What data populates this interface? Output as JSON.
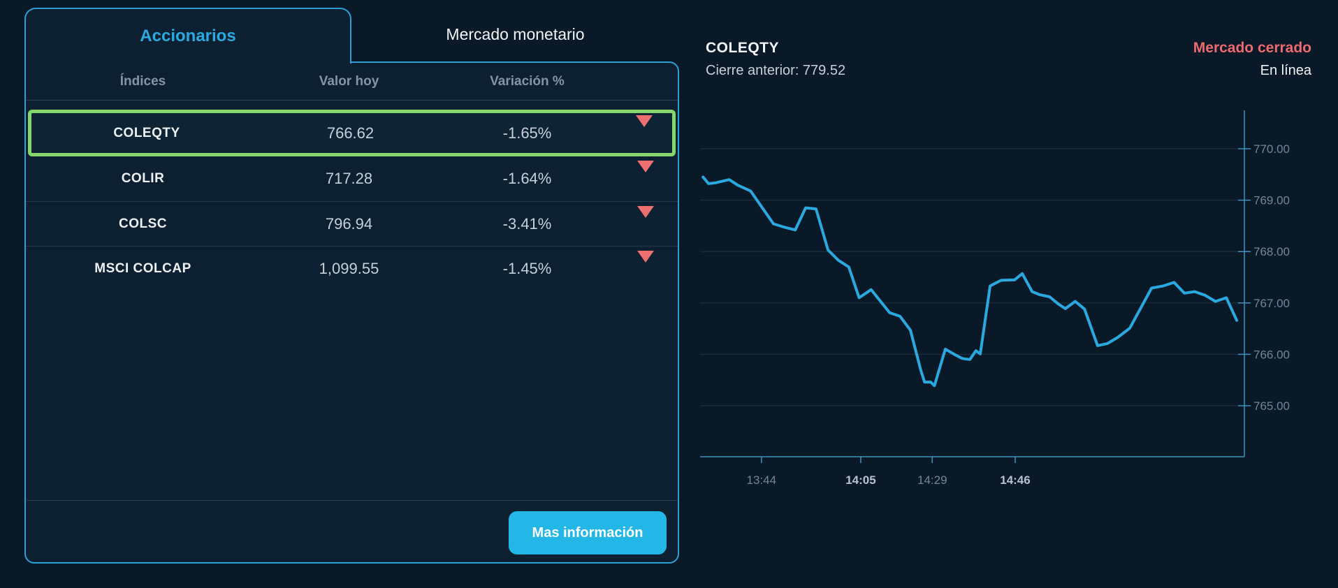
{
  "left_panel": {
    "tabs": [
      {
        "label": "Accionarios",
        "active": true
      },
      {
        "label": "Mercado monetario",
        "active": false
      }
    ],
    "table": {
      "headers": [
        "Índices",
        "Valor hoy",
        "Variación %"
      ],
      "rows": [
        {
          "index": "COLEQTY",
          "value": "766.62",
          "change": "-1.65%",
          "direction": "down",
          "selected": true
        },
        {
          "index": "COLIR",
          "value": "717.28",
          "change": "-1.64%",
          "direction": "down",
          "selected": false
        },
        {
          "index": "COLSC",
          "value": "796.94",
          "change": "-3.41%",
          "direction": "down",
          "selected": false
        },
        {
          "index": "MSCI COLCAP",
          "value": "1,099.55",
          "change": "-1.45%",
          "direction": "down",
          "selected": false
        }
      ]
    },
    "button_label": "Mas información"
  },
  "chart_panel": {
    "title": "COLEQTY",
    "subtitle": "Cierre anterior: 779.52",
    "status": "Mercado cerrado",
    "status_secondary": "En línea"
  },
  "chart_data": {
    "type": "line",
    "title": "COLEQTY",
    "previous_close": 779.52,
    "ylim": [
      764.4,
      770.8
    ],
    "grid": true,
    "y_axis_side": "right",
    "y_ticks": [
      770.0,
      769.0,
      768.0,
      767.0,
      766.0,
      765.0
    ],
    "x_ticks": [
      {
        "label": "13:44",
        "pos": 0.115,
        "bold": false
      },
      {
        "label": "14:05",
        "pos": 0.297,
        "bold": true
      },
      {
        "label": "14:29",
        "pos": 0.428,
        "bold": false
      },
      {
        "label": "14:46",
        "pos": 0.58,
        "bold": true
      }
    ],
    "points": [
      [
        0.008,
        769.45
      ],
      [
        0.018,
        769.32
      ],
      [
        0.032,
        769.34
      ],
      [
        0.056,
        769.4
      ],
      [
        0.072,
        769.29
      ],
      [
        0.095,
        769.18
      ],
      [
        0.137,
        768.54
      ],
      [
        0.155,
        768.48
      ],
      [
        0.177,
        768.42
      ],
      [
        0.196,
        768.85
      ],
      [
        0.215,
        768.83
      ],
      [
        0.237,
        768.03
      ],
      [
        0.256,
        767.83
      ],
      [
        0.275,
        767.7
      ],
      [
        0.294,
        767.1
      ],
      [
        0.316,
        767.26
      ],
      [
        0.35,
        766.81
      ],
      [
        0.369,
        766.74
      ],
      [
        0.388,
        766.47
      ],
      [
        0.407,
        765.69
      ],
      [
        0.414,
        765.46
      ],
      [
        0.425,
        765.46
      ],
      [
        0.432,
        765.39
      ],
      [
        0.452,
        766.1
      ],
      [
        0.47,
        765.99
      ],
      [
        0.483,
        765.92
      ],
      [
        0.497,
        765.9
      ],
      [
        0.508,
        766.07
      ],
      [
        0.516,
        766.01
      ],
      [
        0.534,
        767.33
      ],
      [
        0.554,
        767.44
      ],
      [
        0.579,
        767.45
      ],
      [
        0.593,
        767.57
      ],
      [
        0.611,
        767.22
      ],
      [
        0.625,
        767.16
      ],
      [
        0.643,
        767.12
      ],
      [
        0.659,
        766.98
      ],
      [
        0.672,
        766.89
      ],
      [
        0.69,
        767.03
      ],
      [
        0.707,
        766.88
      ],
      [
        0.731,
        766.17
      ],
      [
        0.749,
        766.21
      ],
      [
        0.768,
        766.33
      ],
      [
        0.79,
        766.51
      ],
      [
        0.83,
        767.29
      ],
      [
        0.851,
        767.33
      ],
      [
        0.871,
        767.4
      ],
      [
        0.89,
        767.19
      ],
      [
        0.909,
        767.22
      ],
      [
        0.928,
        767.15
      ],
      [
        0.947,
        767.03
      ],
      [
        0.967,
        767.1
      ],
      [
        0.986,
        766.66
      ]
    ]
  },
  "colors": {
    "page_bg": "#0A1927",
    "panel_bg": "#0C2031",
    "panel_border": "#2E9FD4",
    "tab_active_text": "#29ABE2",
    "selection_green": "#85D66B",
    "negative_red": "#EE6F6F",
    "status_red": "#ED6A6E",
    "button_cyan": "#22B7E6",
    "chart_line": "#2AA9E0"
  }
}
